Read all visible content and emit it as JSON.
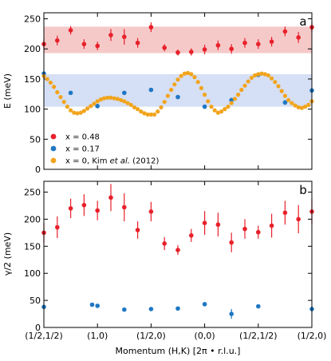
{
  "chart_data": [
    {
      "type": "scatter",
      "panel_label": "a",
      "ylabel": "E (meV)",
      "xlabel": "",
      "xlim": [
        0,
        10
      ],
      "ylim": [
        0,
        260
      ],
      "yticks": [
        0,
        50,
        100,
        150,
        200,
        250
      ],
      "grid": false,
      "legend_position": "bottom-left",
      "bands": [
        {
          "y0": 193,
          "y1": 237,
          "color": "#f6c9c9"
        },
        {
          "y0": 104,
          "y1": 158,
          "color": "#d5dff5"
        }
      ],
      "series": [
        {
          "name": "x = 0.48",
          "color": "#e8202a",
          "with_errorbars": true,
          "x": [
            0,
            0.5,
            1,
            1.5,
            2,
            2.5,
            3,
            3.5,
            4,
            4.5,
            5,
            5.5,
            6,
            6.5,
            7,
            7.5,
            8,
            8.5,
            9,
            9.5,
            10
          ],
          "y": [
            208,
            214,
            231,
            208,
            205,
            223,
            220,
            210,
            236,
            202,
            194,
            195,
            199,
            206,
            200,
            210,
            208,
            212,
            229,
            219,
            236
          ],
          "yerr": [
            8,
            8,
            7,
            8,
            7,
            10,
            13,
            8,
            8,
            6,
            5,
            6,
            8,
            8,
            8,
            8,
            8,
            8,
            8,
            9,
            9
          ]
        },
        {
          "name": "x = 0.17",
          "color": "#1f77c4",
          "with_errorbars": false,
          "x": [
            0,
            1,
            2,
            3,
            4,
            5,
            6,
            7,
            8,
            9,
            10
          ],
          "y": [
            159,
            127,
            105,
            127,
            132,
            120,
            104,
            115,
            157,
            111,
            131
          ],
          "yerr": [
            0,
            0,
            0,
            0,
            0,
            0,
            0,
            0,
            0,
            4,
            0
          ]
        },
        {
          "name": "x = 0, Kim et al. (2012)",
          "color": "#f2a41c",
          "with_errorbars": false,
          "x": [
            0,
            0.125,
            0.25,
            0.375,
            0.5,
            0.625,
            0.75,
            0.875,
            1,
            1.125,
            1.25,
            1.375,
            1.5,
            1.625,
            1.75,
            1.875,
            2,
            2.125,
            2.25,
            2.375,
            2.5,
            2.625,
            2.75,
            2.875,
            3,
            3.125,
            3.25,
            3.375,
            3.5,
            3.625,
            3.75,
            3.875,
            4,
            4.125,
            4.25,
            4.375,
            4.5,
            4.625,
            4.75,
            4.875,
            5,
            5.125,
            5.25,
            5.375,
            5.5,
            5.625,
            5.75,
            5.875,
            6,
            6.125,
            6.25,
            6.375,
            6.5,
            6.625,
            6.75,
            6.875,
            7,
            7.125,
            7.25,
            7.375,
            7.5,
            7.625,
            7.75,
            7.875,
            8,
            8.125,
            8.25,
            8.375,
            8.5,
            8.625,
            8.75,
            8.875,
            9,
            9.125,
            9.25,
            9.375,
            9.5,
            9.625,
            9.75,
            9.875,
            10
          ],
          "y": [
            155,
            150,
            144,
            137,
            128,
            120,
            112,
            104,
            98,
            94,
            93,
            94,
            97,
            101,
            105,
            109,
            113,
            116,
            118,
            119,
            119,
            118,
            117,
            115,
            113,
            110,
            107,
            103,
            100,
            96,
            93,
            91,
            91,
            91,
            96,
            103,
            112,
            122,
            132,
            141,
            149,
            155,
            159,
            160,
            158,
            153,
            145,
            135,
            124,
            113,
            104,
            98,
            94,
            96,
            100,
            104,
            110,
            117,
            124,
            132,
            139,
            146,
            152,
            156,
            158,
            159,
            158,
            156,
            151,
            145,
            138,
            130,
            122,
            115,
            110,
            106,
            103,
            102,
            104,
            107,
            113
          ]
        }
      ],
      "legend_labels": [
        {
          "main": "x = 0.48"
        },
        {
          "main": "x = 0.17"
        },
        {
          "main": "x = 0, Kim ",
          "italic": "et al.",
          "tail": " (2012)"
        }
      ]
    },
    {
      "type": "scatter",
      "panel_label": "b",
      "ylabel": "γ/2 (meV)",
      "xlabel": "Momentum (H,K) [2π • r.l.u.]",
      "xlim": [
        0,
        10
      ],
      "ylim": [
        0,
        270
      ],
      "yticks": [
        0,
        50,
        100,
        150,
        200,
        250
      ],
      "xtick_positions": [
        0,
        2,
        4,
        6,
        8,
        10
      ],
      "xtick_labels": [
        "(1/2,1/2)",
        "(1,0)",
        "(1/2,0)",
        "(0,0)",
        "(1/2,1/2)",
        "(1/2,0)"
      ],
      "grid": false,
      "series": [
        {
          "name": "x = 0.48",
          "color": "#e8202a",
          "with_errorbars": true,
          "x": [
            0,
            0.5,
            1,
            1.5,
            2,
            2.5,
            3,
            3.5,
            4,
            4.5,
            5,
            5.5,
            6,
            6.5,
            7,
            7.5,
            8,
            8.5,
            9,
            9.5,
            10
          ],
          "y": [
            175,
            185,
            220,
            226,
            216,
            240,
            222,
            180,
            214,
            155,
            143,
            170,
            193,
            190,
            157,
            182,
            176,
            188,
            212,
            200,
            214
          ],
          "yerr": [
            18,
            20,
            18,
            20,
            18,
            25,
            26,
            16,
            18,
            12,
            9,
            12,
            22,
            22,
            18,
            18,
            12,
            22,
            22,
            26,
            24
          ]
        },
        {
          "name": "x = 0.17",
          "color": "#1f77c4",
          "with_errorbars": true,
          "x": [
            0,
            1.8,
            2,
            3,
            4,
            5,
            6,
            7,
            8,
            10
          ],
          "y": [
            38,
            42,
            40,
            33,
            34,
            35,
            43,
            25,
            39,
            34
          ],
          "yerr": [
            0,
            0,
            0,
            0,
            0,
            0,
            0,
            9,
            0,
            0
          ]
        }
      ]
    }
  ]
}
